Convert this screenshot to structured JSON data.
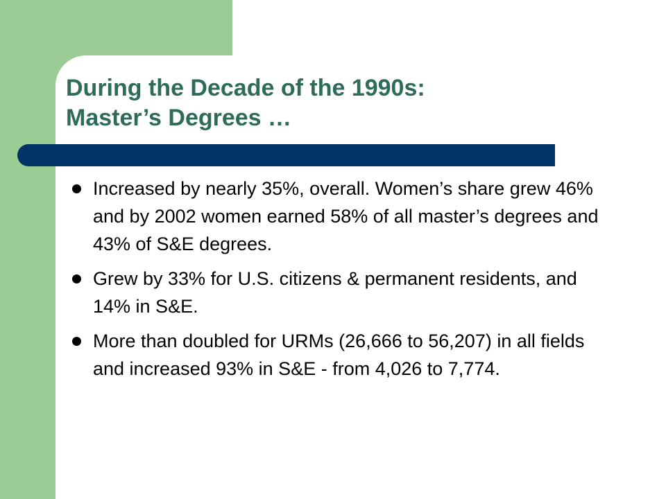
{
  "slide": {
    "title": [
      "During the Decade of the 1990s:",
      "Master’s Degrees …"
    ],
    "bullets": [
      "Increased by nearly 35%, overall.  Women’s share grew 46% and by 2002 women earned 58% of all master’s degrees and 43% of S&E degrees.",
      "Grew by 33% for U.S. citizens & permanent residents, and 14% in S&E.",
      "More than doubled for URMs (26,666 to 56,207) in all fields and increased 93% in S&E - from 4,026 to 7,774."
    ]
  }
}
